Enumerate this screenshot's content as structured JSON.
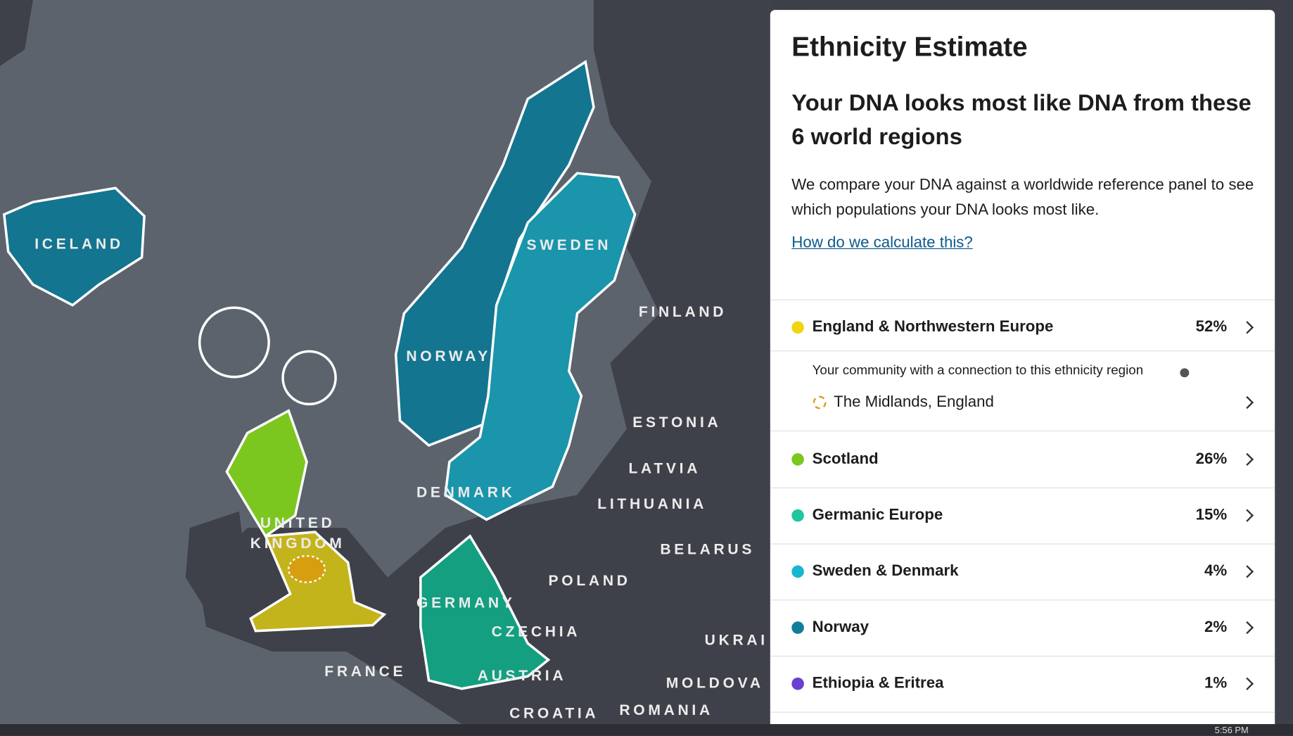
{
  "panel": {
    "title": "Ethnicity Estimate",
    "heading": "Your DNA looks most like DNA from these 6 world regions",
    "description": "We compare your DNA against a worldwide reference panel to see which populations your DNA looks most like.",
    "link": "How do we calculate this?"
  },
  "regions": [
    {
      "name": "England & Northwestern Europe",
      "percent": "52%",
      "color": "#f2d40f"
    },
    {
      "name": "Scotland",
      "percent": "26%",
      "color": "#7cc71f"
    },
    {
      "name": "Germanic Europe",
      "percent": "15%",
      "color": "#1ec79d"
    },
    {
      "name": "Sweden & Denmark",
      "percent": "4%",
      "color": "#19b6cf"
    },
    {
      "name": "Norway",
      "percent": "2%",
      "color": "#127d99"
    },
    {
      "name": "Ethiopia & Eritrea",
      "percent": "1%",
      "color": "#6b3fd1"
    }
  ],
  "community": {
    "intro": "Your community with a connection to this ethnicity region",
    "name": "The Midlands, England"
  },
  "map_labels": [
    "ICELAND",
    "NORWAY",
    "SWEDEN",
    "FINLAND",
    "ESTONIA",
    "LATVIA",
    "LITHUANIA",
    "DENMARK",
    "UNITED",
    "KINGDOM",
    "BELARUS",
    "POLAND",
    "GERMANY",
    "CZECHIA",
    "AUSTRIA",
    "FRANCE",
    "UKRAI",
    "MOLDOVA",
    "ROMANIA",
    "CROATIA"
  ],
  "taskbar": {
    "time": "5:56 PM"
  }
}
